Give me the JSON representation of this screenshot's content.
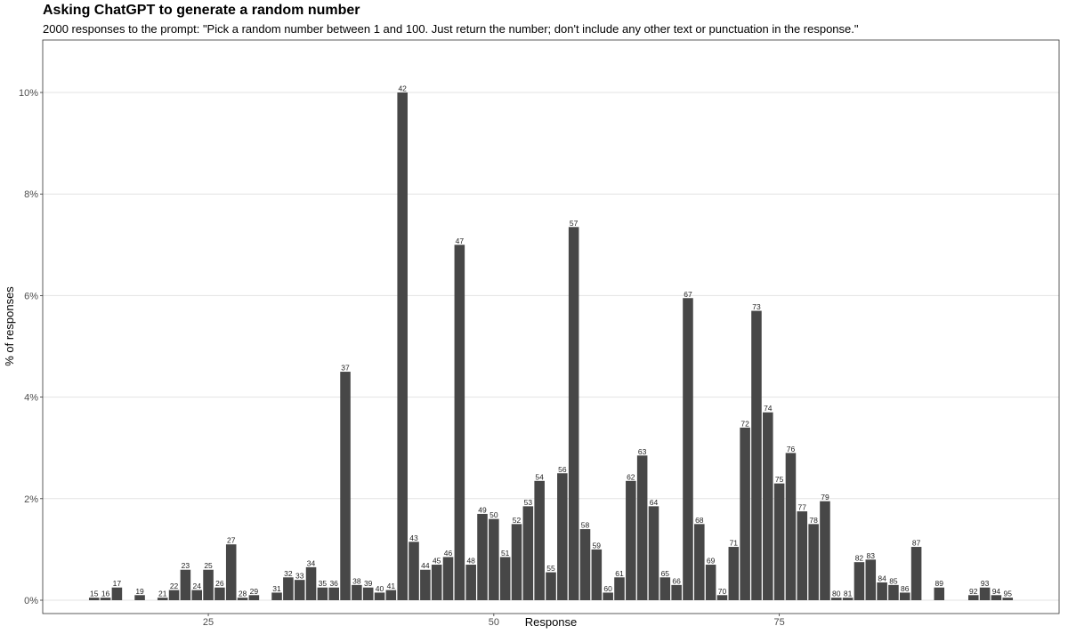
{
  "chart_data": {
    "type": "bar",
    "title": "Asking ChatGPT to generate a random number",
    "subtitle": "2000 responses to the prompt: \"Pick a random number between 1 and 100. Just return the number; don't include any other text or punctuation in the response.\"",
    "xlabel": "Response",
    "ylabel": "% of responses",
    "x_ticks": [
      25,
      50,
      75
    ],
    "y_ticks": [
      0,
      2,
      4,
      6,
      8,
      10
    ],
    "y_tick_labels": [
      "0%",
      "2%",
      "4%",
      "6%",
      "8%",
      "10%"
    ],
    "xlim": [
      10.5,
      99.5
    ],
    "ylim": [
      0,
      11.1
    ],
    "grid": "horizontal major",
    "bar_color": "#474747",
    "data_labels": "response value above each bar",
    "x": [
      15,
      16,
      17,
      19,
      21,
      22,
      23,
      24,
      25,
      26,
      27,
      28,
      29,
      31,
      32,
      33,
      34,
      35,
      36,
      37,
      38,
      39,
      40,
      41,
      42,
      43,
      44,
      45,
      46,
      47,
      48,
      49,
      50,
      51,
      52,
      53,
      54,
      55,
      56,
      57,
      58,
      59,
      60,
      61,
      62,
      63,
      64,
      65,
      66,
      67,
      68,
      69,
      70,
      71,
      72,
      73,
      74,
      75,
      76,
      77,
      78,
      79,
      80,
      81,
      82,
      83,
      84,
      85,
      86,
      87,
      89,
      92,
      93,
      94,
      95
    ],
    "values": [
      0.05,
      0.05,
      0.25,
      0.1,
      0.05,
      0.2,
      0.6,
      0.2,
      0.6,
      0.25,
      1.1,
      0.05,
      0.1,
      0.15,
      0.45,
      0.4,
      0.65,
      0.25,
      0.25,
      4.5,
      0.3,
      0.25,
      0.15,
      0.2,
      10.0,
      1.15,
      0.6,
      0.7,
      0.85,
      7.0,
      0.7,
      1.7,
      1.6,
      0.85,
      1.5,
      1.85,
      2.35,
      0.55,
      2.5,
      7.35,
      1.4,
      1.0,
      0.15,
      0.45,
      2.35,
      2.85,
      1.85,
      0.45,
      0.3,
      5.95,
      1.5,
      0.7,
      0.1,
      1.05,
      3.4,
      5.7,
      3.7,
      2.3,
      2.9,
      1.75,
      1.5,
      1.95,
      0.05,
      0.05,
      0.75,
      0.8,
      0.35,
      0.3,
      0.15,
      1.05,
      0.25,
      0.1,
      0.25,
      0.1,
      0.05
    ]
  }
}
